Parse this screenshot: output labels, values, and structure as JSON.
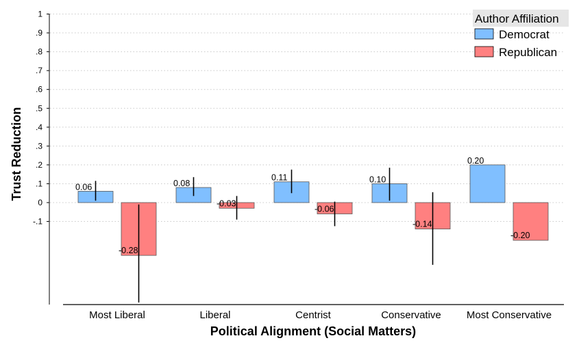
{
  "chart_data": {
    "type": "bar",
    "xlabel": "Political Alignment (Social Matters)",
    "ylabel": "Trust Reduction",
    "categories": [
      "Most Liberal",
      "Liberal",
      "Centrist",
      "Conservative",
      "Most Conservative"
    ],
    "y_ticks": [
      {
        "value": 1,
        "label": "1"
      },
      {
        "value": 0.9,
        "label": ".9"
      },
      {
        "value": 0.8,
        "label": ".8"
      },
      {
        "value": 0.7,
        "label": ".7"
      },
      {
        "value": 0.6,
        "label": ".6"
      },
      {
        "value": 0.5,
        "label": ".5"
      },
      {
        "value": 0.4,
        "label": ".4"
      },
      {
        "value": 0.3,
        "label": ".3"
      },
      {
        "value": 0.2,
        "label": ".2"
      },
      {
        "value": 0.1,
        "label": ".1"
      },
      {
        "value": 0,
        "label": "0"
      },
      {
        "value": -0.1,
        "label": "-.1"
      }
    ],
    "ylim": [
      -0.53,
      1
    ],
    "grid": true,
    "legend": {
      "title": "Author Affiliation",
      "position": "top-right"
    },
    "series": [
      {
        "name": "Democrat",
        "color": "#80bfff",
        "values": [
          0.06,
          0.08,
          0.11,
          0.1,
          0.2
        ],
        "labels": [
          "0.06",
          "0.08",
          "0.11",
          "0.10",
          "0.20"
        ],
        "ci_low": [
          0.01,
          0.035,
          0.05,
          0.01,
          null
        ],
        "ci_high": [
          0.115,
          0.135,
          0.175,
          0.185,
          null
        ]
      },
      {
        "name": "Republican",
        "color": "#ff8080",
        "values": [
          -0.28,
          -0.03,
          -0.06,
          -0.14,
          -0.2
        ],
        "labels": [
          "-0.28",
          "-0.03",
          "-0.06",
          "-0.14",
          "-0.20"
        ],
        "ci_low": [
          -0.53,
          -0.09,
          -0.125,
          -0.33,
          null
        ],
        "ci_high": [
          -0.01,
          0.035,
          0.005,
          0.055,
          null
        ]
      }
    ]
  }
}
